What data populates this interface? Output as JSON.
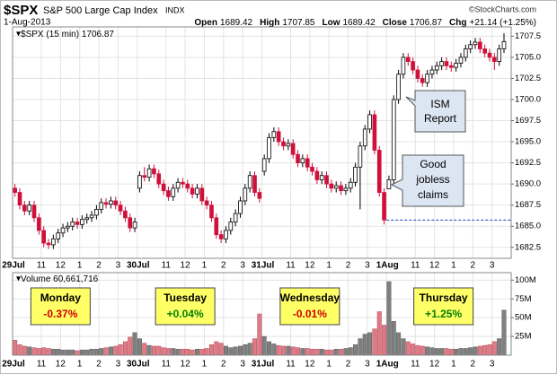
{
  "chart_data": {
    "type": "candlestick",
    "header": {
      "symbol": "$SPX",
      "name": "S&P 500 Large Cap Index",
      "exchange": "INDX",
      "date": "1-Aug-2013",
      "stats": [
        {
          "label": "Open",
          "value": "1689.42"
        },
        {
          "label": "High",
          "value": "1707.85"
        },
        {
          "label": "Low",
          "value": "1689.42"
        },
        {
          "label": "Close",
          "value": "1706.87"
        },
        {
          "label": "Chg",
          "value": "+21.14 (+1.25%)"
        }
      ],
      "copyright": "©StockCharts.com"
    },
    "legend": "$SPX (15 min) 1706.87",
    "volume_legend": "Volume 60,661,716",
    "up_color": "#ffffff",
    "down_color": "#d0103a",
    "volume_up_color": "#808080",
    "volume_down_color": "#e07a86",
    "ref_line": 1685.73,
    "grid": true,
    "ylim": [
      1681.2,
      1708.6
    ],
    "yticks": [
      1682.5,
      {
        "value": 1685,
        "label": "1685.0"
      },
      1687.5,
      {
        "value": 1690,
        "label": "1690.0"
      },
      1692.5,
      {
        "value": 1695,
        "label": "1695.0"
      },
      1697.5,
      {
        "value": 1700,
        "label": "1700.0"
      },
      1702.5,
      {
        "value": 1705,
        "label": "1705.0"
      },
      1707.5
    ],
    "volume_ylim": [
      0,
      110
    ],
    "volume_yticks": [
      {
        "value": 25,
        "label": "25M"
      },
      {
        "value": 50,
        "label": "50M"
      },
      {
        "value": 75,
        "label": "75M"
      },
      {
        "value": 100,
        "label": "100M"
      }
    ],
    "xticks": [
      {
        "value": 0,
        "label": "29Jul"
      },
      {
        "value": 6,
        "label": "11"
      },
      {
        "value": 10,
        "label": "12"
      },
      {
        "value": 14,
        "label": "1"
      },
      {
        "value": 18,
        "label": "2"
      },
      {
        "value": 22,
        "label": "3"
      },
      {
        "value": 26,
        "label": "30Jul"
      },
      {
        "value": 32,
        "label": "11"
      },
      {
        "value": 36,
        "label": "12"
      },
      {
        "value": 40,
        "label": "1"
      },
      {
        "value": 44,
        "label": "2"
      },
      {
        "value": 48,
        "label": "3"
      },
      {
        "value": 52,
        "label": "31Jul"
      },
      {
        "value": 58,
        "label": "11"
      },
      {
        "value": 62,
        "label": "12"
      },
      {
        "value": 66,
        "label": "1"
      },
      {
        "value": 70,
        "label": "2"
      },
      {
        "value": 74,
        "label": "3"
      },
      {
        "value": 78,
        "label": "1Aug"
      },
      {
        "value": 84,
        "label": "11"
      },
      {
        "value": 88,
        "label": "12"
      },
      {
        "value": 92,
        "label": "1"
      },
      {
        "value": 96,
        "label": "2"
      },
      {
        "value": 100,
        "label": "3"
      }
    ],
    "days": [
      {
        "name": "Monday",
        "change": "-0.37%",
        "color": "#d00000"
      },
      {
        "name": "Tuesday",
        "change": "+0.04%",
        "color": "#008000"
      },
      {
        "name": "Wednesday",
        "change": "-0.01%",
        "color": "#d00000"
      },
      {
        "name": "Thursday",
        "change": "+1.25%",
        "color": "#008000"
      }
    ],
    "annotations": [
      {
        "lines": [
          "ISM",
          "Report"
        ]
      },
      {
        "lines": [
          "Good",
          "jobless",
          "claims"
        ]
      }
    ],
    "candles": [
      [
        1689.5,
        1690.0,
        1688.5,
        1689.0
      ],
      [
        1689.0,
        1689.5,
        1687.0,
        1687.5
      ],
      [
        1687.5,
        1688.0,
        1686.3,
        1686.8
      ],
      [
        1686.8,
        1688.0,
        1686.3,
        1687.5
      ],
      [
        1687.5,
        1688.0,
        1685.5,
        1686.0
      ],
      [
        1686.0,
        1686.5,
        1684.0,
        1684.5
      ],
      [
        1684.5,
        1685.0,
        1682.5,
        1683.0
      ],
      [
        1683.0,
        1683.5,
        1682.3,
        1682.8
      ],
      [
        1682.8,
        1684.0,
        1682.3,
        1683.5
      ],
      [
        1683.5,
        1684.7,
        1683.0,
        1684.2
      ],
      [
        1684.2,
        1685.3,
        1683.7,
        1684.8
      ],
      [
        1684.8,
        1685.5,
        1684.3,
        1685.0
      ],
      [
        1685.0,
        1686.0,
        1684.5,
        1685.5
      ],
      [
        1685.5,
        1686.0,
        1684.7,
        1685.2
      ],
      [
        1685.2,
        1686.3,
        1684.7,
        1685.8
      ],
      [
        1685.8,
        1686.5,
        1685.3,
        1686.0
      ],
      [
        1686.0,
        1686.8,
        1685.5,
        1686.3
      ],
      [
        1686.3,
        1687.5,
        1685.8,
        1687.0
      ],
      [
        1687.0,
        1688.3,
        1686.5,
        1687.8
      ],
      [
        1687.8,
        1688.3,
        1687.1,
        1687.6
      ],
      [
        1687.6,
        1688.5,
        1687.1,
        1688.0
      ],
      [
        1688.0,
        1688.5,
        1687.0,
        1687.5
      ],
      [
        1687.5,
        1688.0,
        1686.3,
        1686.8
      ],
      [
        1686.8,
        1687.3,
        1685.5,
        1686.0
      ],
      [
        1686.0,
        1686.5,
        1684.3,
        1684.8
      ],
      [
        1684.8,
        1686.0,
        1684.3,
        1685.5
      ],
      [
        1689.5,
        1691.5,
        1689.0,
        1691.0
      ],
      [
        1691.0,
        1692.0,
        1690.3,
        1690.8
      ],
      [
        1690.8,
        1692.3,
        1690.3,
        1691.8
      ],
      [
        1691.8,
        1692.3,
        1690.7,
        1691.2
      ],
      [
        1691.2,
        1691.7,
        1689.5,
        1690.0
      ],
      [
        1690.0,
        1690.5,
        1688.7,
        1689.2
      ],
      [
        1689.2,
        1689.7,
        1688.0,
        1688.5
      ],
      [
        1688.5,
        1690.0,
        1688.0,
        1689.5
      ],
      [
        1689.5,
        1690.7,
        1689.0,
        1690.2
      ],
      [
        1690.2,
        1690.7,
        1689.5,
        1690.0
      ],
      [
        1690.0,
        1690.5,
        1689.0,
        1689.5
      ],
      [
        1689.5,
        1690.0,
        1688.3,
        1688.8
      ],
      [
        1688.8,
        1690.0,
        1688.3,
        1689.5
      ],
      [
        1689.5,
        1690.0,
        1687.5,
        1688.0
      ],
      [
        1688.0,
        1688.5,
        1687.0,
        1687.5
      ],
      [
        1687.5,
        1688.0,
        1685.5,
        1686.0
      ],
      [
        1686.0,
        1686.5,
        1683.5,
        1684.0
      ],
      [
        1684.0,
        1684.5,
        1683.0,
        1683.5
      ],
      [
        1683.5,
        1685.0,
        1683.0,
        1684.5
      ],
      [
        1684.5,
        1686.0,
        1684.0,
        1685.5
      ],
      [
        1685.5,
        1687.0,
        1685.0,
        1686.5
      ],
      [
        1686.5,
        1688.5,
        1686.0,
        1688.0
      ],
      [
        1688.0,
        1690.0,
        1687.5,
        1689.5
      ],
      [
        1689.5,
        1691.5,
        1689.0,
        1691.0
      ],
      [
        1691.0,
        1691.5,
        1688.5,
        1689.0
      ],
      [
        1689.0,
        1689.5,
        1687.8,
        1688.3
      ],
      [
        1691.5,
        1693.5,
        1691.0,
        1693.0
      ],
      [
        1693.0,
        1696.0,
        1692.5,
        1695.5
      ],
      [
        1695.5,
        1696.7,
        1695.0,
        1696.2
      ],
      [
        1696.2,
        1696.7,
        1694.5,
        1695.0
      ],
      [
        1695.0,
        1695.5,
        1694.0,
        1694.5
      ],
      [
        1694.5,
        1695.3,
        1694.0,
        1694.8
      ],
      [
        1694.8,
        1695.3,
        1693.0,
        1693.5
      ],
      [
        1693.5,
        1694.0,
        1692.0,
        1692.5
      ],
      [
        1692.5,
        1693.5,
        1692.0,
        1693.0
      ],
      [
        1693.0,
        1693.5,
        1691.5,
        1692.0
      ],
      [
        1692.0,
        1692.5,
        1691.0,
        1691.5
      ],
      [
        1691.5,
        1692.0,
        1690.0,
        1690.5
      ],
      [
        1690.5,
        1691.5,
        1690.0,
        1691.0
      ],
      [
        1691.0,
        1691.5,
        1689.5,
        1690.0
      ],
      [
        1690.0,
        1690.5,
        1689.0,
        1689.5
      ],
      [
        1689.5,
        1690.3,
        1689.0,
        1689.8
      ],
      [
        1689.8,
        1690.3,
        1688.7,
        1689.2
      ],
      [
        1689.2,
        1690.0,
        1688.7,
        1689.5
      ],
      [
        1689.5,
        1690.7,
        1689.0,
        1690.2
      ],
      [
        1690.2,
        1692.5,
        1689.7,
        1692.0
      ],
      [
        1692.0,
        1695.0,
        1687.0,
        1694.5
      ],
      [
        1694.5,
        1697.0,
        1694.0,
        1696.5
      ],
      [
        1696.5,
        1698.7,
        1696.0,
        1698.2
      ],
      [
        1698.2,
        1698.7,
        1693.5,
        1694.0
      ],
      [
        1694.0,
        1694.5,
        1688.5,
        1689.0
      ],
      [
        1689.0,
        1689.5,
        1685.2,
        1685.73
      ],
      [
        1689.42,
        1691.0,
        1689.42,
        1690.5
      ],
      [
        1690.5,
        1700.5,
        1690.0,
        1700.0
      ],
      [
        1700.0,
        1703.5,
        1699.5,
        1703.0
      ],
      [
        1703.0,
        1705.5,
        1702.5,
        1705.0
      ],
      [
        1705.0,
        1705.5,
        1704.0,
        1704.5
      ],
      [
        1704.5,
        1705.0,
        1703.0,
        1703.5
      ],
      [
        1703.5,
        1704.0,
        1702.0,
        1702.5
      ],
      [
        1702.5,
        1703.0,
        1701.5,
        1702.0
      ],
      [
        1702.0,
        1703.5,
        1701.5,
        1703.0
      ],
      [
        1703.0,
        1704.0,
        1702.5,
        1703.5
      ],
      [
        1703.5,
        1704.5,
        1703.0,
        1704.0
      ],
      [
        1704.0,
        1705.0,
        1703.5,
        1704.5
      ],
      [
        1704.5,
        1705.0,
        1703.5,
        1704.0
      ],
      [
        1704.0,
        1704.5,
        1703.3,
        1703.8
      ],
      [
        1703.8,
        1704.8,
        1703.3,
        1704.3
      ],
      [
        1704.3,
        1705.5,
        1703.8,
        1705.0
      ],
      [
        1705.0,
        1706.5,
        1704.5,
        1706.0
      ],
      [
        1706.0,
        1707.0,
        1705.5,
        1706.5
      ],
      [
        1706.5,
        1707.3,
        1706.0,
        1706.8
      ],
      [
        1706.8,
        1707.3,
        1705.5,
        1706.0
      ],
      [
        1706.0,
        1706.5,
        1705.0,
        1705.5
      ],
      [
        1705.5,
        1706.0,
        1704.5,
        1705.0
      ],
      [
        1705.0,
        1705.5,
        1703.5,
        1704.5
      ],
      [
        1704.5,
        1706.5,
        1704.0,
        1706.0
      ],
      [
        1706.0,
        1707.85,
        1705.5,
        1706.87
      ]
    ],
    "volume": [
      20,
      14,
      12,
      11,
      10,
      9,
      10,
      9,
      8,
      8,
      7,
      7,
      7,
      6,
      7,
      7,
      8,
      8,
      9,
      10,
      11,
      12,
      14,
      18,
      24,
      30,
      22,
      16,
      13,
      12,
      12,
      10,
      9,
      9,
      8,
      8,
      8,
      7,
      8,
      8,
      9,
      14,
      18,
      16,
      12,
      10,
      11,
      12,
      14,
      16,
      22,
      55,
      25,
      18,
      15,
      13,
      12,
      12,
      11,
      10,
      9,
      9,
      8,
      8,
      8,
      7,
      7,
      8,
      8,
      9,
      10,
      14,
      22,
      28,
      30,
      35,
      58,
      40,
      98,
      45,
      30,
      22,
      18,
      15,
      13,
      12,
      11,
      10,
      9,
      9,
      9,
      8,
      8,
      9,
      9,
      10,
      11,
      12,
      13,
      14,
      18,
      22,
      60
    ]
  }
}
